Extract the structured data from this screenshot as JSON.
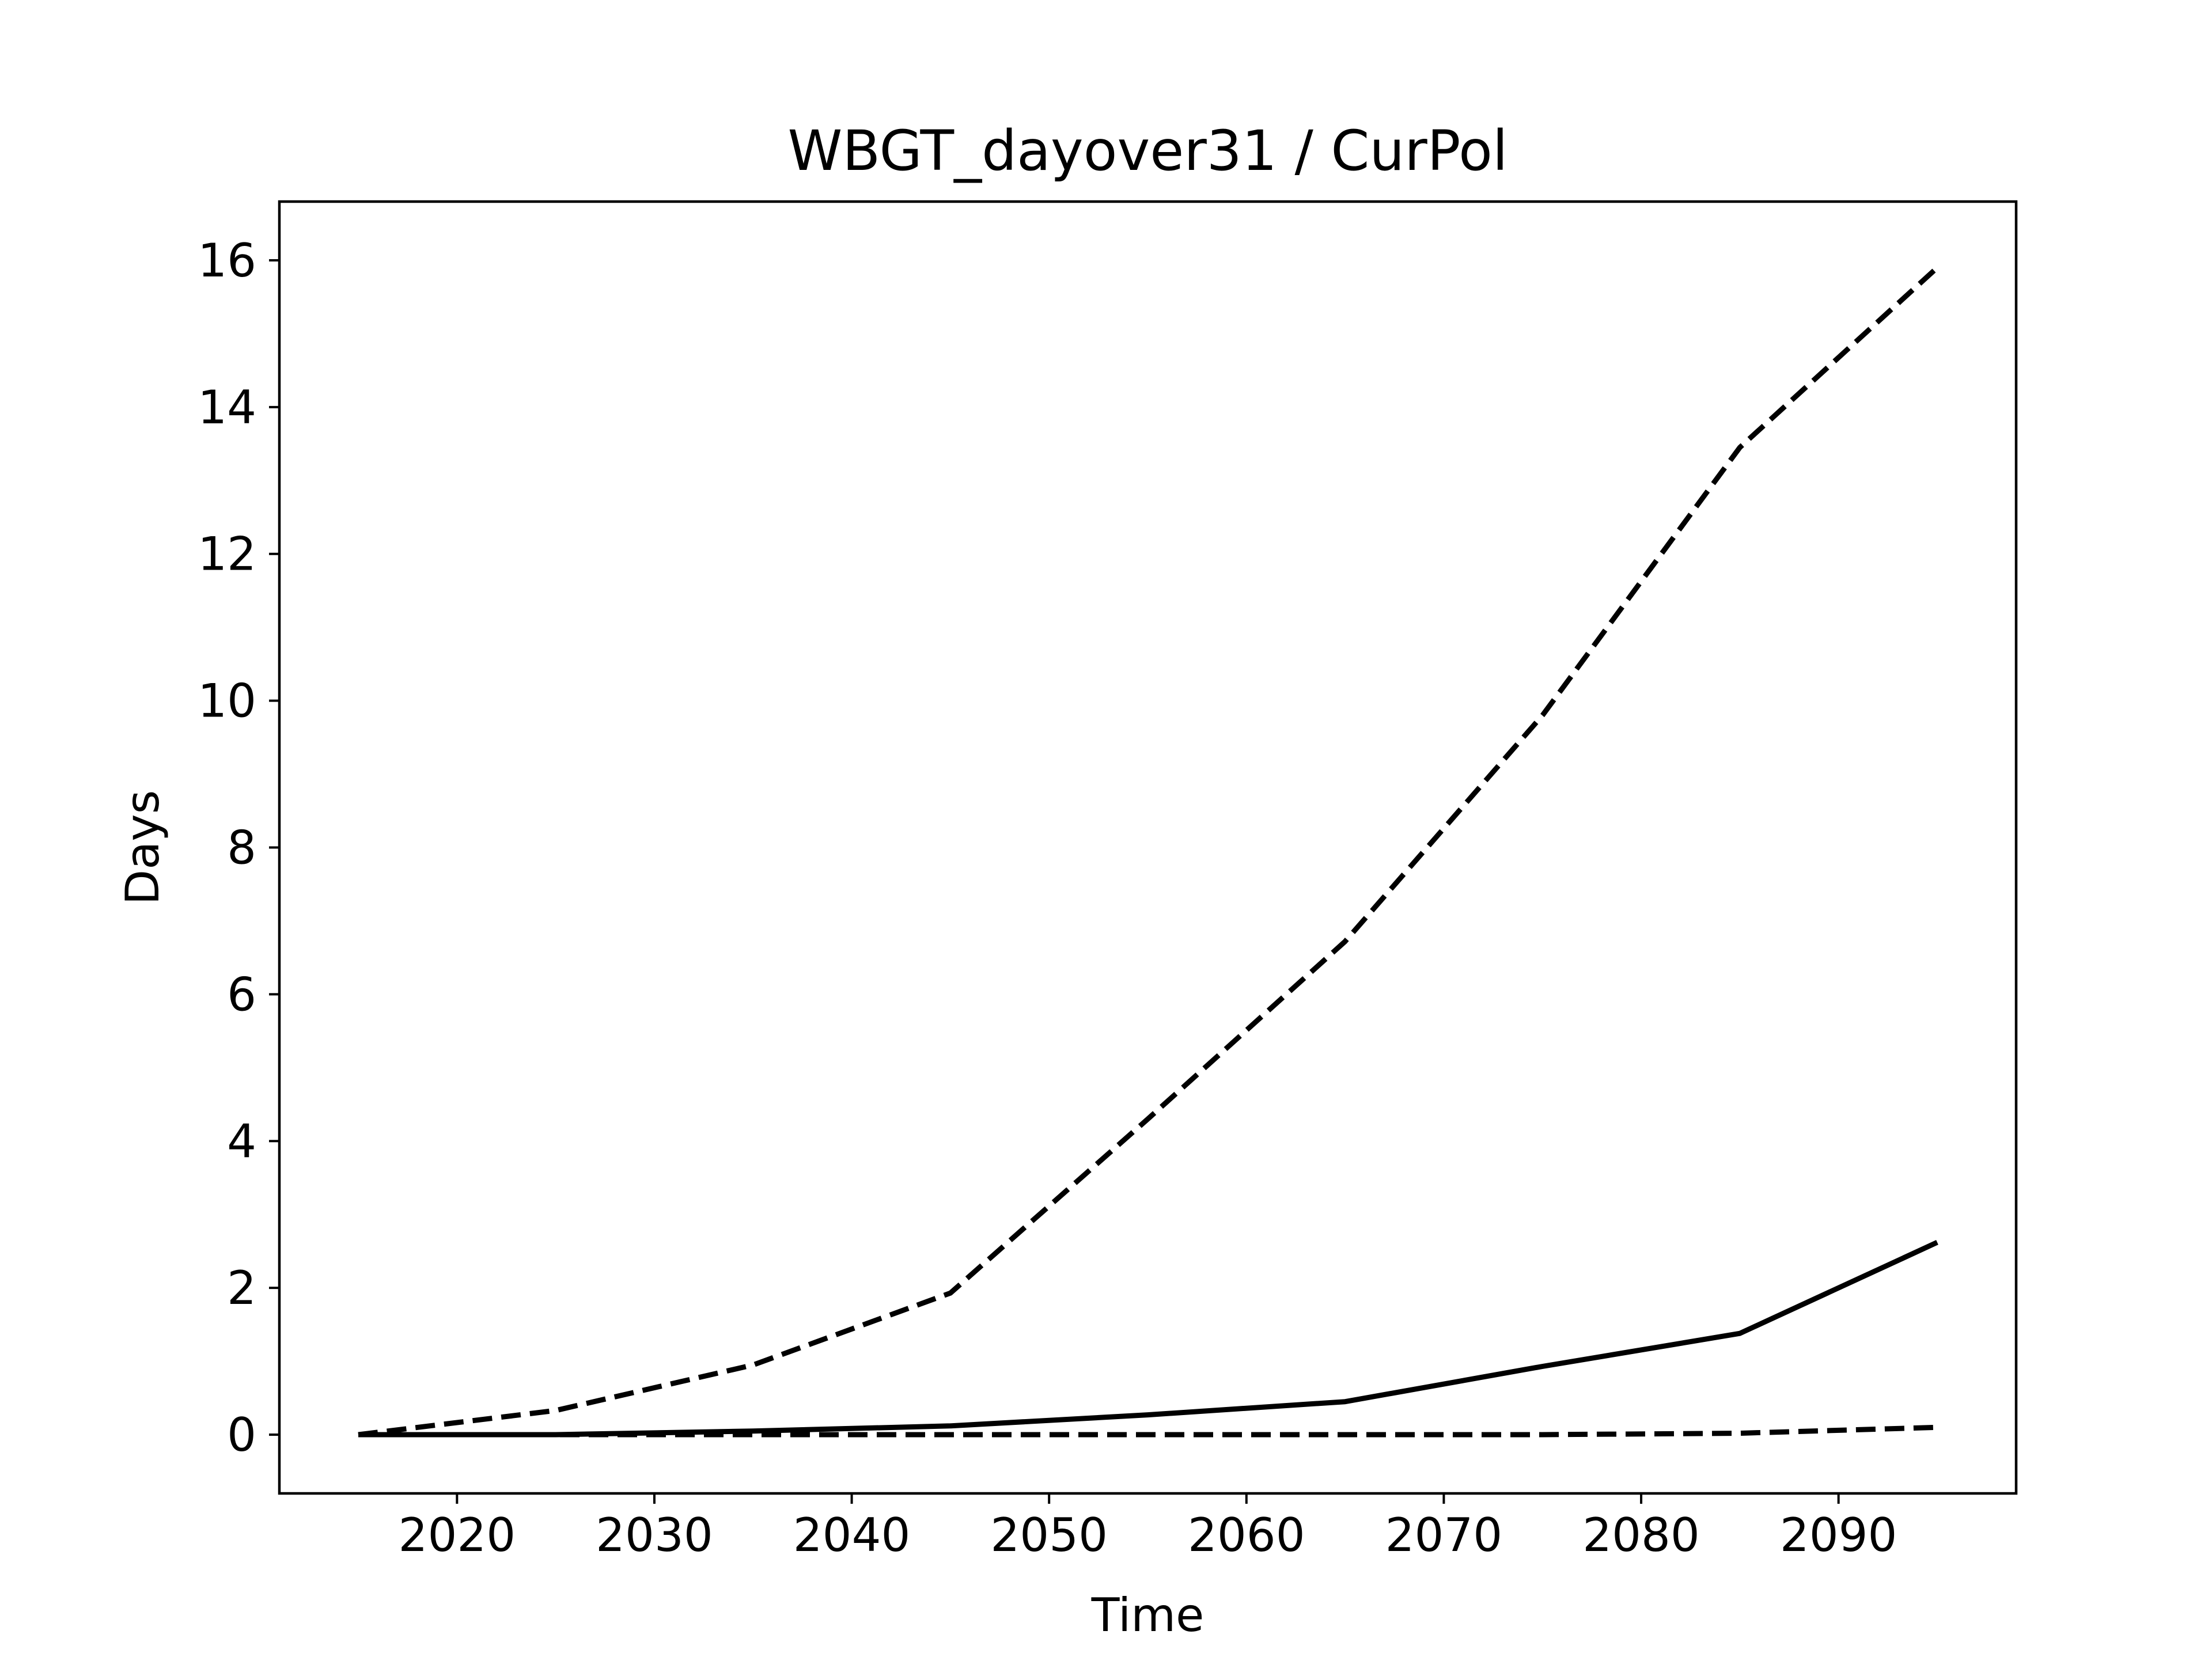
{
  "chart_data": {
    "type": "line",
    "title": "WBGT_dayover31 / CurPol",
    "xlabel": "Time",
    "ylabel": "Days",
    "xlim": [
      2011,
      2099
    ],
    "ylim": [
      -0.8,
      16.8
    ],
    "xticks": [
      2020,
      2030,
      2040,
      2050,
      2060,
      2070,
      2080,
      2090
    ],
    "yticks": [
      0,
      2,
      4,
      6,
      8,
      10,
      12,
      14,
      16
    ],
    "grid": false,
    "legend": "none",
    "x": [
      2015,
      2025,
      2035,
      2045,
      2055,
      2065,
      2075,
      2085,
      2095
    ],
    "series": [
      {
        "style": "dashed",
        "color": "#000000",
        "values": [
          0.0,
          0.33,
          0.95,
          1.93,
          4.3,
          6.72,
          9.8,
          13.45,
          15.9
        ]
      },
      {
        "style": "solid",
        "color": "#000000",
        "values": [
          0.0,
          0.0,
          0.05,
          0.12,
          0.27,
          0.45,
          0.93,
          1.38,
          2.62
        ]
      },
      {
        "style": "dashed",
        "color": "#000000",
        "values": [
          0.0,
          0.0,
          0.0,
          0.0,
          0.0,
          0.0,
          0.0,
          0.02,
          0.1
        ]
      }
    ]
  }
}
